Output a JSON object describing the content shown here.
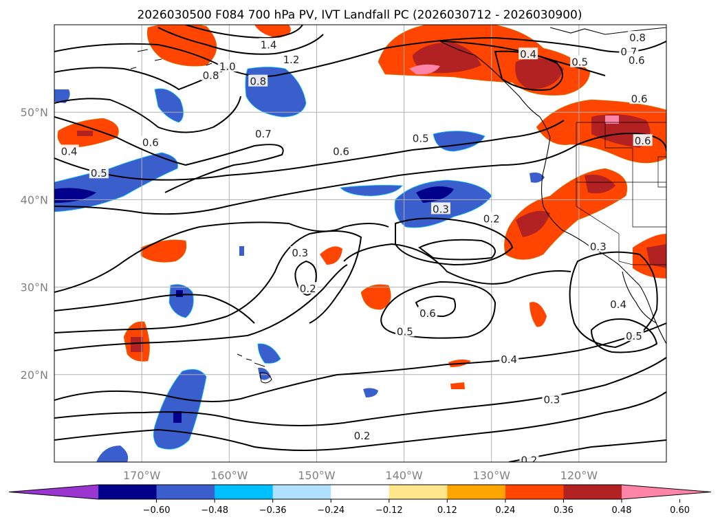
{
  "title": "2026030500 F084 700 hPa PV, IVT Landfall PC (2026030712 - 2026030900)",
  "map": {
    "lon_range": [
      -180,
      -110
    ],
    "lat_range": [
      10,
      60
    ],
    "lat_ticks": [
      {
        "lat": 50,
        "label": "50°N"
      },
      {
        "lat": 40,
        "label": "40°N"
      },
      {
        "lat": 30,
        "label": "30°N"
      },
      {
        "lat": 20,
        "label": "20°N"
      }
    ],
    "lon_ticks": [
      {
        "lon": -170,
        "label": "170°W"
      },
      {
        "lon": -160,
        "label": "160°W"
      },
      {
        "lon": -150,
        "label": "150°W"
      },
      {
        "lon": -140,
        "label": "140°W"
      },
      {
        "lon": -130,
        "label": "130°W"
      },
      {
        "lon": -120,
        "label": "120°W"
      }
    ],
    "grid": true,
    "contour_color": "#000000",
    "gridline_color": "#b0b0b0"
  },
  "colorbar": {
    "levels": [
      -0.6,
      -0.48,
      -0.36,
      -0.24,
      -0.12,
      0.12,
      0.24,
      0.36,
      0.48,
      0.6
    ],
    "tick_labels": [
      "−0.60",
      "−0.48",
      "−0.36",
      "−0.24",
      "−0.12",
      "0.12",
      "0.24",
      "0.36",
      "0.48",
      "0.60"
    ],
    "colors": [
      "#9a35d0",
      "#00008b",
      "#3a5ecc",
      "#00bfff",
      "#b0e2ff",
      "#ffffff",
      "#ffe68a",
      "#ffa500",
      "#ff4500",
      "#b22222",
      "#ff85a8"
    ],
    "extend": "both"
  },
  "contour_labels": [
    {
      "text": "0.8",
      "lon": -113.3,
      "lat": 58.5
    },
    {
      "text": "0.7",
      "lon": -114.3,
      "lat": 56.9
    },
    {
      "text": "0.6",
      "lon": -113.4,
      "lat": 55.9
    },
    {
      "text": "0.5",
      "lon": -119.9,
      "lat": 55.7
    },
    {
      "text": "0.4",
      "lon": -125.8,
      "lat": 56.6
    },
    {
      "text": "1.4",
      "lon": -155.5,
      "lat": 57.7
    },
    {
      "text": "1.2",
      "lon": -152.9,
      "lat": 56.0
    },
    {
      "text": "1.0",
      "lon": -160.2,
      "lat": 55.2
    },
    {
      "text": "0.8",
      "lon": -162.1,
      "lat": 54.2
    },
    {
      "text": "0.8",
      "lon": -156.7,
      "lat": 53.5
    },
    {
      "text": "0.6",
      "lon": -113.1,
      "lat": 51.5
    },
    {
      "text": "0.6",
      "lon": -112.7,
      "lat": 46.7
    },
    {
      "text": "0.7",
      "lon": -156.1,
      "lat": 47.5
    },
    {
      "text": "0.6",
      "lon": -147.2,
      "lat": 45.5
    },
    {
      "text": "0.5",
      "lon": -138.1,
      "lat": 47.0
    },
    {
      "text": "0.6",
      "lon": -169.0,
      "lat": 46.5
    },
    {
      "text": "0.5",
      "lon": -174.9,
      "lat": 43.0
    },
    {
      "text": "0.4",
      "lon": -178.3,
      "lat": 45.5
    },
    {
      "text": "0.3",
      "lon": -135.8,
      "lat": 38.9
    },
    {
      "text": "0.2",
      "lon": -130.0,
      "lat": 37.8
    },
    {
      "text": "0.3",
      "lon": -151.9,
      "lat": 33.9
    },
    {
      "text": "0.2",
      "lon": -151.0,
      "lat": 29.8
    },
    {
      "text": "0.3",
      "lon": -117.8,
      "lat": 34.6
    },
    {
      "text": "0.6",
      "lon": -137.3,
      "lat": 27.0
    },
    {
      "text": "0.5",
      "lon": -139.9,
      "lat": 24.9
    },
    {
      "text": "0.4",
      "lon": -128.0,
      "lat": 21.7
    },
    {
      "text": "0.4",
      "lon": -115.5,
      "lat": 28.0
    },
    {
      "text": "0.5",
      "lon": -113.7,
      "lat": 24.4
    },
    {
      "text": "0.3",
      "lon": -123.1,
      "lat": 17.1
    },
    {
      "text": "0.2",
      "lon": -144.8,
      "lat": 13.0
    },
    {
      "text": "0.2",
      "lon": -125.7,
      "lat": 10.2
    }
  ]
}
